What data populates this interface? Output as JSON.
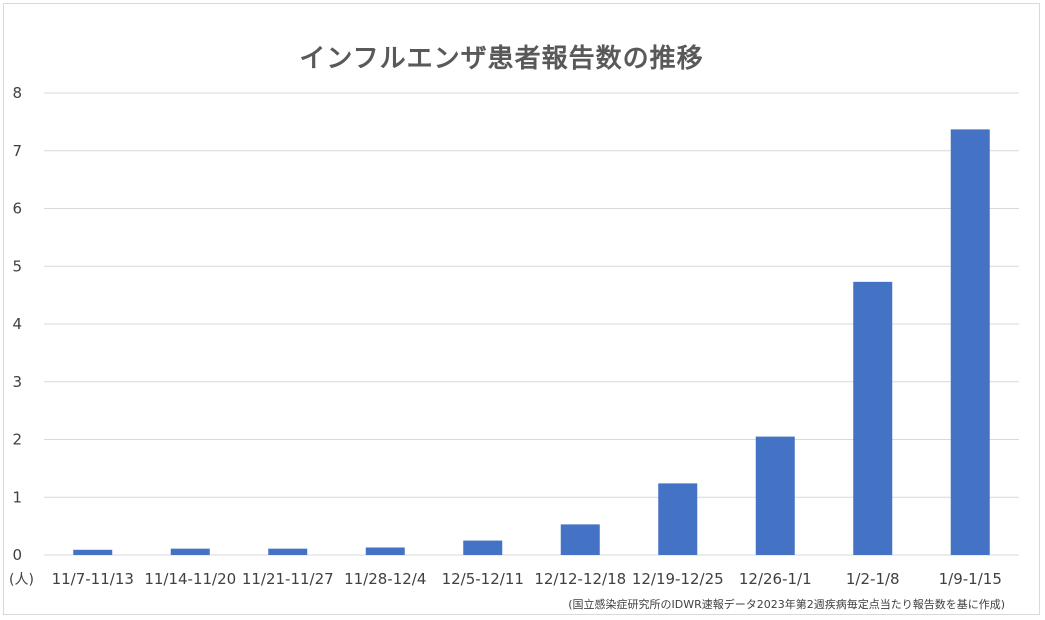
{
  "chart_data": {
    "type": "bar",
    "title": "インフルエンザ患者報告数の推移",
    "unit_label": "(人)",
    "source_note": "(国立感染症研究所のIDWR速報データ2023年第2週疾病毎定点当たり報告数を基に作成)",
    "categories": [
      "11/7-11/13",
      "11/14-11/20",
      "11/21-11/27",
      "11/28-12/4",
      "12/5-12/11",
      "12/12-12/18",
      "12/19-12/25",
      "12/26-1/1",
      "1/2-1/8",
      "1/9-1/15"
    ],
    "values": [
      0.09,
      0.11,
      0.11,
      0.13,
      0.25,
      0.53,
      1.24,
      2.05,
      4.73,
      7.37
    ],
    "ylim": [
      0,
      8
    ],
    "yticks": [
      0,
      1,
      2,
      3,
      4,
      5,
      6,
      7,
      8
    ],
    "grid": true,
    "legend": "none",
    "bar_color": "#4472c4",
    "grid_color": "#d9d9d9"
  }
}
